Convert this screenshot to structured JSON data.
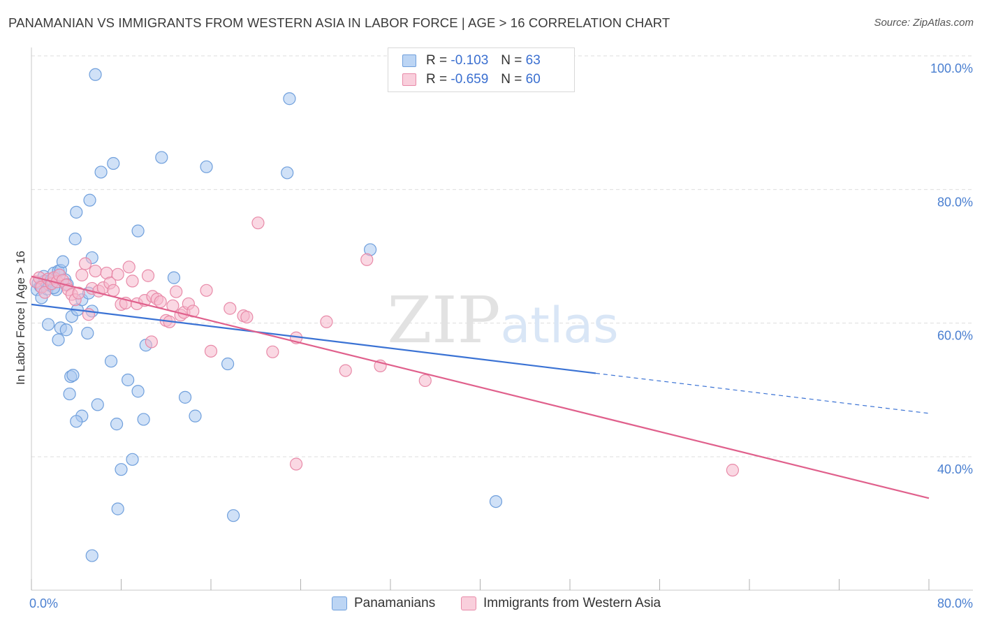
{
  "chart_data": {
    "type": "scatter",
    "title": "PANAMANIAN VS IMMIGRANTS FROM WESTERN ASIA IN LABOR FORCE | AGE > 16 CORRELATION CHART",
    "source": "Source: ZipAtlas.com",
    "xlabel": "",
    "ylabel": "In Labor Force | Age > 16",
    "xlim": [
      0,
      80
    ],
    "ylim": [
      20,
      103
    ],
    "x_tick_labels": [
      {
        "value": 0,
        "label": "0.0%"
      },
      {
        "value": 80,
        "label": "80.0%"
      }
    ],
    "x_ticks": [
      0,
      8,
      16,
      24,
      32,
      40,
      48,
      56,
      64,
      72,
      80
    ],
    "y_tick_labels": [
      {
        "value": 40,
        "label": "40.0%"
      },
      {
        "value": 60,
        "label": "60.0%"
      },
      {
        "value": 80,
        "label": "80.0%"
      },
      {
        "value": 100,
        "label": "100.0%"
      }
    ],
    "grid": true,
    "watermark": "ZIPatlas",
    "legend": {
      "placement": "top-center",
      "entries": [
        {
          "r_label": "R =",
          "r_value": "-0.103",
          "n_label": "N =",
          "n_value": "63"
        },
        {
          "r_label": "R =",
          "r_value": "-0.659",
          "n_label": "N =",
          "n_value": "60"
        }
      ]
    },
    "series": [
      {
        "name": "Panamanians",
        "fill": "#a9c8f0",
        "stroke": "#6f9fdc",
        "trend_color": "#3a72d4",
        "trend": {
          "x0": 0,
          "y0": 62.8,
          "x1": 50.3,
          "y1": 52.5,
          "x_dash_end": 80,
          "y_dash_end": 46.5
        },
        "points": [
          [
            0.5,
            65.0
          ],
          [
            0.6,
            66.0
          ],
          [
            0.8,
            65.5
          ],
          [
            0.9,
            63.8
          ],
          [
            1.1,
            67.0
          ],
          [
            1.2,
            66.3
          ],
          [
            1.4,
            65.1
          ],
          [
            1.6,
            65.7
          ],
          [
            1.8,
            66.5
          ],
          [
            1.9,
            66.2
          ],
          [
            2.0,
            67.5
          ],
          [
            2.2,
            65.0
          ],
          [
            2.4,
            67.8
          ],
          [
            2.6,
            67.9
          ],
          [
            2.8,
            69.2
          ],
          [
            3.0,
            66.5
          ],
          [
            3.2,
            65.8
          ],
          [
            1.5,
            59.8
          ],
          [
            2.4,
            57.5
          ],
          [
            2.6,
            59.3
          ],
          [
            3.1,
            59.0
          ],
          [
            3.6,
            61.0
          ],
          [
            4.1,
            62.0
          ],
          [
            4.5,
            63.5
          ],
          [
            5.0,
            58.5
          ],
          [
            5.1,
            64.5
          ],
          [
            5.4,
            61.8
          ],
          [
            3.9,
            72.6
          ],
          [
            4.0,
            76.6
          ],
          [
            5.2,
            78.4
          ],
          [
            5.4,
            69.8
          ],
          [
            6.2,
            82.6
          ],
          [
            7.3,
            83.9
          ],
          [
            9.5,
            73.8
          ],
          [
            11.6,
            84.8
          ],
          [
            15.6,
            83.4
          ],
          [
            22.8,
            82.5
          ],
          [
            23.0,
            93.6
          ],
          [
            5.7,
            97.2
          ],
          [
            3.5,
            52.0
          ],
          [
            3.7,
            52.2
          ],
          [
            3.4,
            49.4
          ],
          [
            4.5,
            46.1
          ],
          [
            4.0,
            45.3
          ],
          [
            5.9,
            47.8
          ],
          [
            7.1,
            54.3
          ],
          [
            7.6,
            44.9
          ],
          [
            8.6,
            51.5
          ],
          [
            9.0,
            39.6
          ],
          [
            9.5,
            49.8
          ],
          [
            10.0,
            45.6
          ],
          [
            10.2,
            56.7
          ],
          [
            12.7,
            66.8
          ],
          [
            13.7,
            48.9
          ],
          [
            14.6,
            46.1
          ],
          [
            17.5,
            53.9
          ],
          [
            8.0,
            38.1
          ],
          [
            7.7,
            32.2
          ],
          [
            18.0,
            31.2
          ],
          [
            30.2,
            71.0
          ],
          [
            5.4,
            25.2
          ],
          [
            41.4,
            33.3
          ],
          [
            2.0,
            65.3
          ]
        ]
      },
      {
        "name": "Immigrants from Western Asia",
        "fill": "#f6b8cc",
        "stroke": "#e88aa8",
        "trend_color": "#e0608c",
        "trend": {
          "x0": 0,
          "y0": 67.0,
          "x1": 80,
          "y1": 33.8
        },
        "points": [
          [
            0.4,
            66.2
          ],
          [
            0.7,
            66.8
          ],
          [
            0.9,
            65.4
          ],
          [
            1.2,
            64.6
          ],
          [
            1.5,
            66.6
          ],
          [
            1.8,
            65.9
          ],
          [
            2.0,
            66.8
          ],
          [
            2.3,
            66.2
          ],
          [
            2.5,
            67.2
          ],
          [
            2.8,
            66.4
          ],
          [
            3.1,
            65.7
          ],
          [
            3.3,
            65.0
          ],
          [
            3.6,
            64.3
          ],
          [
            3.9,
            63.5
          ],
          [
            4.2,
            64.5
          ],
          [
            4.5,
            67.2
          ],
          [
            4.8,
            68.9
          ],
          [
            5.1,
            61.3
          ],
          [
            5.4,
            65.2
          ],
          [
            5.7,
            67.8
          ],
          [
            6.0,
            64.8
          ],
          [
            6.4,
            65.3
          ],
          [
            6.7,
            67.5
          ],
          [
            7.0,
            66.0
          ],
          [
            7.3,
            64.9
          ],
          [
            7.7,
            67.3
          ],
          [
            8.0,
            62.8
          ],
          [
            8.4,
            63.0
          ],
          [
            8.7,
            68.4
          ],
          [
            9.0,
            66.3
          ],
          [
            9.4,
            62.9
          ],
          [
            10.1,
            63.4
          ],
          [
            10.4,
            67.1
          ],
          [
            10.8,
            64.0
          ],
          [
            11.2,
            63.6
          ],
          [
            11.5,
            63.2
          ],
          [
            12.0,
            60.4
          ],
          [
            12.3,
            60.2
          ],
          [
            12.6,
            62.6
          ],
          [
            12.9,
            64.7
          ],
          [
            13.3,
            61.2
          ],
          [
            13.6,
            61.6
          ],
          [
            14.0,
            62.9
          ],
          [
            14.4,
            61.8
          ],
          [
            15.6,
            64.9
          ],
          [
            17.7,
            62.2
          ],
          [
            18.9,
            61.1
          ],
          [
            19.2,
            60.9
          ],
          [
            20.2,
            75.0
          ],
          [
            21.5,
            55.7
          ],
          [
            23.6,
            57.8
          ],
          [
            26.3,
            60.2
          ],
          [
            28.0,
            52.9
          ],
          [
            29.9,
            69.5
          ],
          [
            31.1,
            53.6
          ],
          [
            35.1,
            51.4
          ],
          [
            23.6,
            38.9
          ],
          [
            10.7,
            57.2
          ],
          [
            16.0,
            55.8
          ],
          [
            62.5,
            38.0
          ]
        ]
      }
    ]
  }
}
